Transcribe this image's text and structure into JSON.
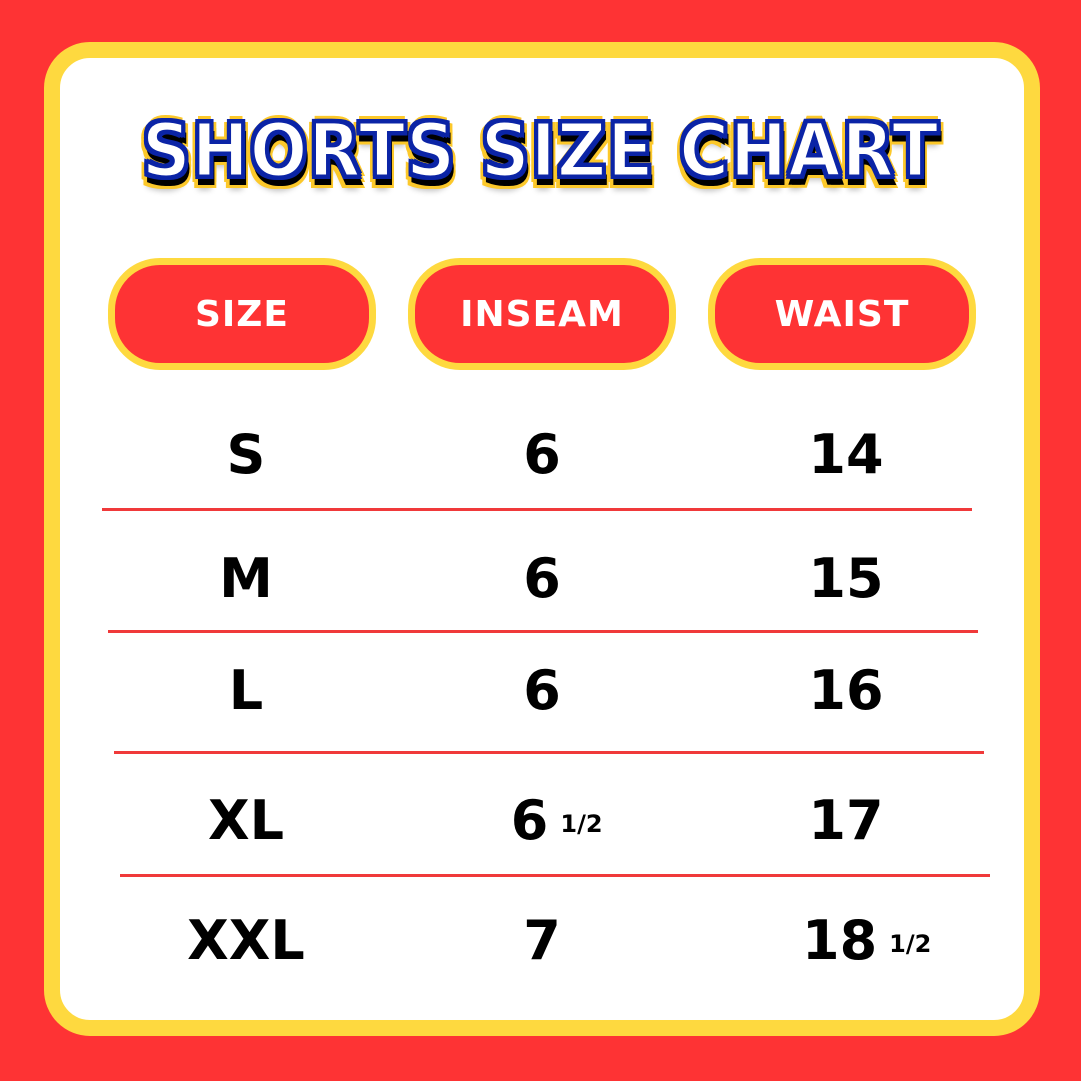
{
  "title": "SHORTS SIZE CHART",
  "colors": {
    "background": "#fe3334",
    "border": "#fed93f",
    "title_fill": "#ffffff",
    "title_stroke": "#0b24a6",
    "header_pill": "#fe3334",
    "divider": "#f0393a"
  },
  "headers": [
    "SIZE",
    "INSEAM",
    "WAIST"
  ],
  "rows": [
    {
      "size": "S",
      "inseam": "6",
      "inseam_fraction": "",
      "waist": "14",
      "waist_fraction": ""
    },
    {
      "size": "M",
      "inseam": "6",
      "inseam_fraction": "",
      "waist": "15",
      "waist_fraction": ""
    },
    {
      "size": "L",
      "inseam": "6",
      "inseam_fraction": "",
      "waist": "16",
      "waist_fraction": ""
    },
    {
      "size": "XL",
      "inseam": "6",
      "inseam_fraction": "1/2",
      "waist": "17",
      "waist_fraction": ""
    },
    {
      "size": "XXL",
      "inseam": "7",
      "inseam_fraction": "",
      "waist": "18",
      "waist_fraction": "1/2"
    }
  ]
}
